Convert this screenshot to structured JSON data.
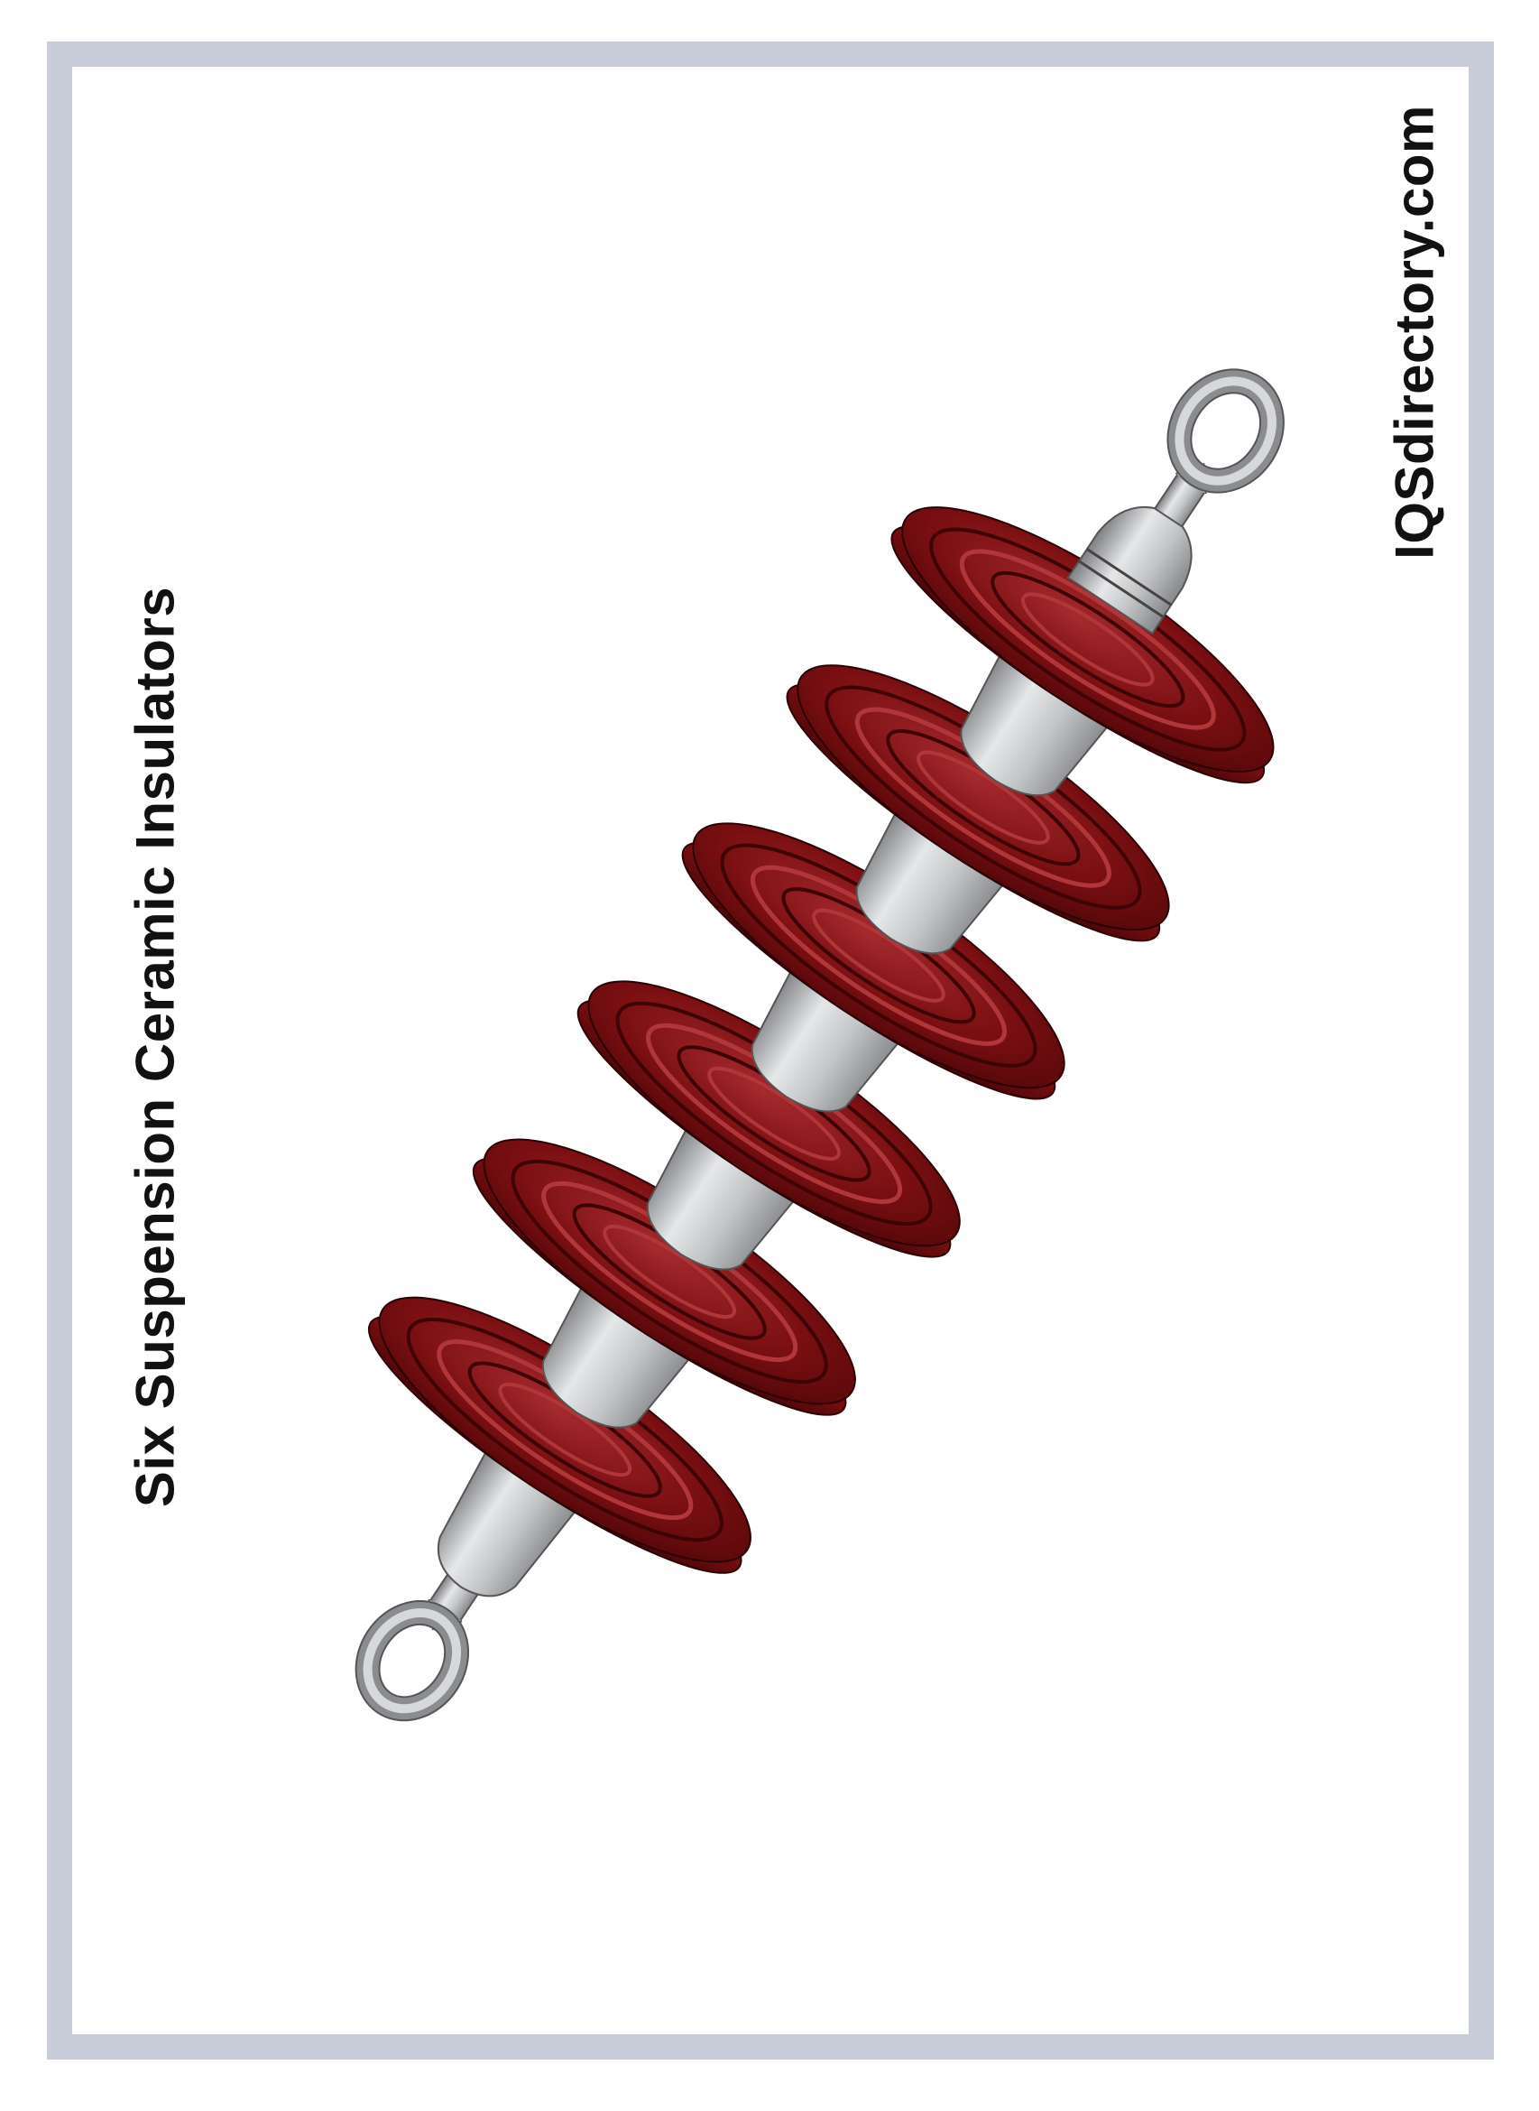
{
  "title": "Six Suspension Ceramic Insulators",
  "website": "IQSdirectory.com",
  "illustration": {
    "subject": "string of suspension ceramic insulators",
    "disc_count": 6,
    "colors": {
      "disc": "#7a0f12",
      "disc_dark": "#4e0608",
      "disc_highlight": "#b0363a",
      "metal": "#b9bbbd",
      "metal_dark": "#808284",
      "metal_light": "#e4e6e8",
      "frame": "#c9cdd9"
    }
  }
}
